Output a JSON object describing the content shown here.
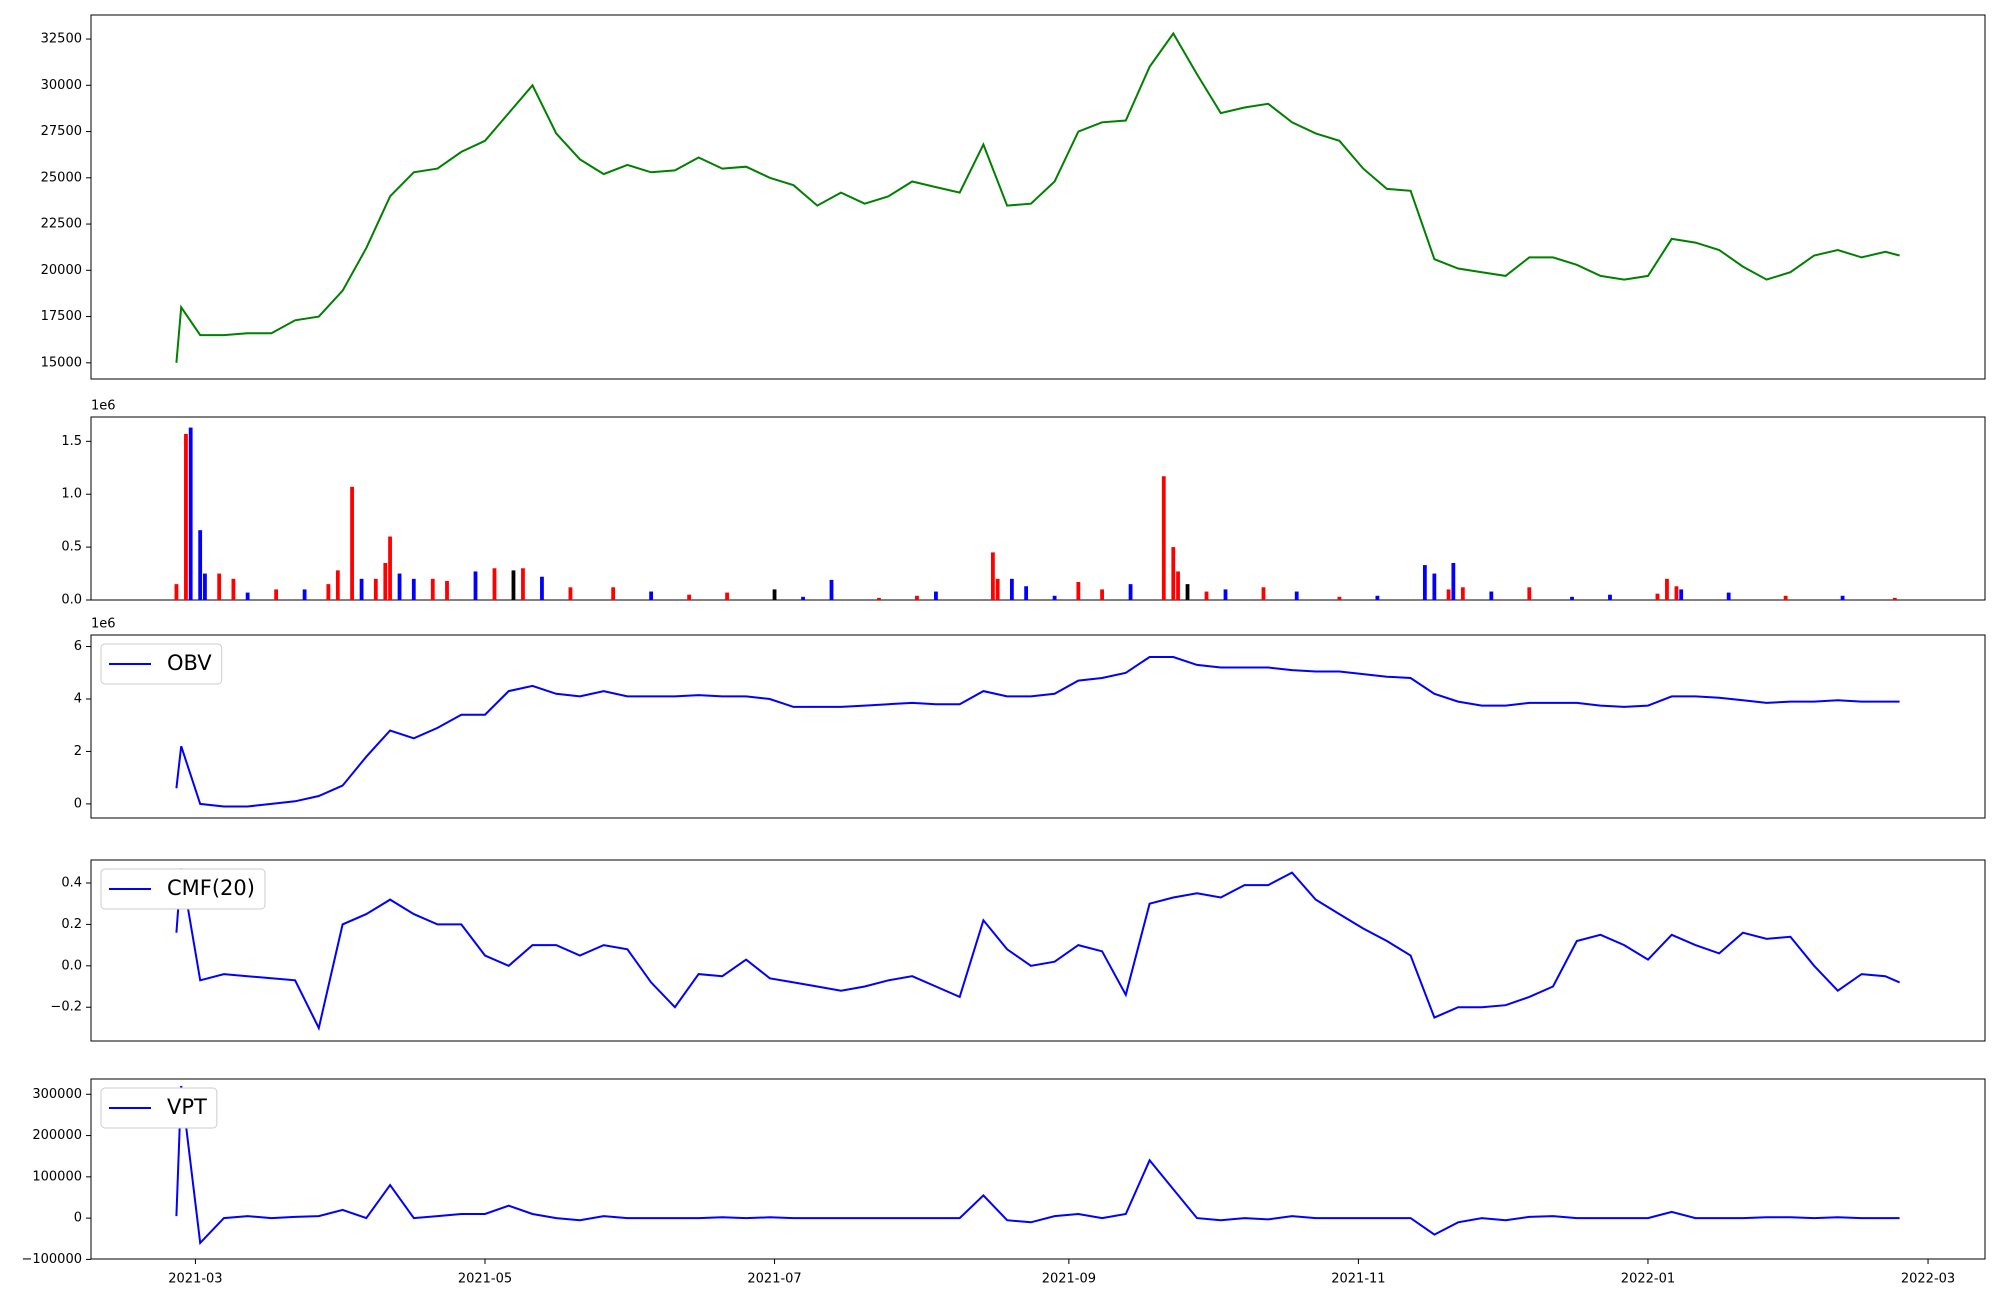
{
  "chart_data": [
    {
      "type": "line",
      "xlim": [
        18665,
        19064
      ],
      "ylim": [
        14125,
        33800
      ],
      "yticks": [
        15000,
        17500,
        20000,
        22500,
        25000,
        27500,
        30000,
        32500
      ],
      "x": [
        18683,
        18684,
        18688,
        18693,
        18698,
        18703,
        18708,
        18713,
        18718,
        18723,
        18728,
        18733,
        18738,
        18743,
        18748,
        18753,
        18758,
        18763,
        18768,
        18773,
        18778,
        18783,
        18788,
        18793,
        18798,
        18803,
        18808,
        18813,
        18818,
        18823,
        18828,
        18833,
        18838,
        18843,
        18848,
        18853,
        18858,
        18863,
        18868,
        18873,
        18878,
        18883,
        18888,
        18893,
        18898,
        18903,
        18908,
        18913,
        18918,
        18923,
        18928,
        18933,
        18938,
        18943,
        18948,
        18953,
        18958,
        18963,
        18968,
        18973,
        18978,
        18983,
        18988,
        18993,
        18998,
        19003,
        19008,
        19013,
        19018,
        19023,
        19028,
        19033,
        19038,
        19043,
        19046
      ],
      "series": [
        {
          "color": "#008000",
          "values": [
            15000,
            18000,
            16500,
            16500,
            16600,
            16600,
            17300,
            17500,
            18900,
            21200,
            24000,
            25300,
            25500,
            26400,
            27000,
            28500,
            30000,
            27400,
            26000,
            25200,
            25700,
            25300,
            25400,
            26100,
            25500,
            25600,
            25000,
            24600,
            23500,
            24200,
            23600,
            24000,
            24800,
            24500,
            24200,
            26800,
            23500,
            23600,
            24800,
            27500,
            28000,
            28100,
            31000,
            32800,
            30600,
            28500,
            28800,
            29000,
            28000,
            27400,
            27000,
            25500,
            24400,
            24300,
            20600,
            20100,
            19900,
            19700,
            20700,
            20700,
            20300,
            19700,
            19500,
            19700,
            21700,
            21500,
            21100,
            20200,
            19500,
            19900,
            20800,
            21100,
            20700,
            21000,
            20800
          ]
        }
      ]
    },
    {
      "type": "bar",
      "xlim": [
        18665,
        19064
      ],
      "ylim": [
        0,
        1730000
      ],
      "y_offset_label": "1e6",
      "yticks": [
        {
          "value": 0,
          "label": "0.0"
        },
        {
          "value": 500000,
          "label": "0.5"
        },
        {
          "value": 1000000,
          "label": "1.0"
        },
        {
          "value": 1500000,
          "label": "1.5"
        }
      ],
      "x": [
        18683,
        18685,
        18686,
        18688,
        18689,
        18692,
        18695,
        18698,
        18704,
        18710,
        18715,
        18717,
        18720,
        18722,
        18725,
        18727,
        18728,
        18730,
        18733,
        18737,
        18740,
        18746,
        18750,
        18754,
        18756,
        18760,
        18766,
        18775,
        18783,
        18791,
        18799,
        18809,
        18815,
        18821,
        18831,
        18839,
        18843,
        18855,
        18856,
        18859,
        18862,
        18868,
        18873,
        18878,
        18884,
        18891,
        18893,
        18894,
        18896,
        18900,
        18904,
        18912,
        18919,
        18928,
        18936,
        18946,
        18948,
        18951,
        18952,
        18954,
        18960,
        18968,
        18977,
        18985,
        18995,
        18997,
        18999,
        19000,
        19010,
        19022,
        19034,
        19045
      ],
      "series": [
        {
          "values": [
            150000,
            1570000,
            1630000,
            660000,
            250000,
            250000,
            200000,
            70000,
            100000,
            100000,
            150000,
            280000,
            1070000,
            200000,
            200000,
            350000,
            600000,
            250000,
            200000,
            200000,
            180000,
            270000,
            300000,
            280000,
            300000,
            220000,
            120000,
            120000,
            80000,
            50000,
            70000,
            100000,
            30000,
            190000,
            20000,
            40000,
            80000,
            450000,
            200000,
            200000,
            130000,
            40000,
            170000,
            100000,
            150000,
            1170000,
            500000,
            270000,
            150000,
            80000,
            100000,
            120000,
            80000,
            30000,
            40000,
            330000,
            250000,
            100000,
            350000,
            120000,
            80000,
            120000,
            30000,
            50000,
            60000,
            200000,
            130000,
            100000,
            70000,
            40000,
            40000,
            20000
          ],
          "colors": [
            "#ff0000",
            "#ff0000",
            "#0000ff",
            "#0000ff",
            "#0000ff",
            "#ff0000",
            "#ff0000",
            "#0000ff",
            "#ff0000",
            "#0000ff",
            "#ff0000",
            "#ff0000",
            "#ff0000",
            "#0000ff",
            "#ff0000",
            "#ff0000",
            "#ff0000",
            "#0000ff",
            "#0000ff",
            "#ff0000",
            "#ff0000",
            "#0000ff",
            "#ff0000",
            "#000000",
            "#ff0000",
            "#0000ff",
            "#ff0000",
            "#ff0000",
            "#0000ff",
            "#ff0000",
            "#ff0000",
            "#000000",
            "#0000ff",
            "#0000ff",
            "#ff0000",
            "#ff0000",
            "#0000ff",
            "#ff0000",
            "#ff0000",
            "#0000ff",
            "#0000ff",
            "#0000ff",
            "#ff0000",
            "#ff0000",
            "#0000ff",
            "#ff0000",
            "#ff0000",
            "#ff0000",
            "#000000",
            "#ff0000",
            "#0000ff",
            "#ff0000",
            "#0000ff",
            "#ff0000",
            "#0000ff",
            "#0000ff",
            "#0000ff",
            "#ff0000",
            "#0000ff",
            "#ff0000",
            "#0000ff",
            "#ff0000",
            "#0000ff",
            "#0000ff",
            "#ff0000",
            "#ff0000",
            "#ff0000",
            "#0000ff",
            "#0000ff",
            "#ff0000",
            "#0000ff",
            "#ff0000"
          ]
        }
      ]
    },
    {
      "type": "line",
      "xlim": [
        18665,
        19064
      ],
      "ylim": [
        -537000,
        6440000
      ],
      "y_offset_label": "1e6",
      "legend": "upper left",
      "yticks": [
        0,
        {
          "value": 2000000,
          "label": "2"
        },
        {
          "value": 4000000,
          "label": "4"
        },
        {
          "value": 6000000,
          "label": "6"
        }
      ],
      "x": [
        18683,
        18684,
        18688,
        18693,
        18698,
        18703,
        18708,
        18713,
        18718,
        18723,
        18728,
        18733,
        18738,
        18743,
        18748,
        18753,
        18758,
        18763,
        18768,
        18773,
        18778,
        18783,
        18788,
        18793,
        18798,
        18803,
        18808,
        18813,
        18818,
        18823,
        18828,
        18833,
        18838,
        18843,
        18848,
        18853,
        18858,
        18863,
        18868,
        18873,
        18878,
        18883,
        18888,
        18893,
        18898,
        18903,
        18908,
        18913,
        18918,
        18923,
        18928,
        18933,
        18938,
        18943,
        18948,
        18953,
        18958,
        18963,
        18968,
        18973,
        18978,
        18983,
        18988,
        18993,
        18998,
        19003,
        19008,
        19013,
        19018,
        19023,
        19028,
        19033,
        19038,
        19043,
        19046
      ],
      "series": [
        {
          "name": "OBV",
          "color": "#0000ff",
          "values": [
            600000,
            2200000,
            0,
            -100000,
            -100000,
            0,
            100000,
            300000,
            700000,
            1800000,
            2800000,
            2500000,
            2900000,
            3400000,
            3400000,
            4300000,
            4500000,
            4200000,
            4100000,
            4300000,
            4100000,
            4100000,
            4100000,
            4150000,
            4100000,
            4100000,
            4000000,
            3700000,
            3700000,
            3700000,
            3750000,
            3800000,
            3850000,
            3800000,
            3800000,
            4300000,
            4100000,
            4100000,
            4200000,
            4700000,
            4800000,
            5000000,
            5600000,
            5600000,
            5300000,
            5200000,
            5200000,
            5200000,
            5100000,
            5050000,
            5050000,
            4950000,
            4850000,
            4800000,
            4200000,
            3900000,
            3750000,
            3750000,
            3850000,
            3850000,
            3850000,
            3750000,
            3700000,
            3750000,
            4100000,
            4100000,
            4050000,
            3950000,
            3850000,
            3900000,
            3900000,
            3950000,
            3900000,
            3900000,
            3900000
          ]
        }
      ]
    },
    {
      "type": "line",
      "xlim": [
        18665,
        19064
      ],
      "ylim": [
        -0.363,
        0.511
      ],
      "legend": "upper left",
      "yticks": [
        {
          "value": -0.2,
          "label": "−0.2"
        },
        {
          "value": 0,
          "label": "0.0"
        },
        0.2,
        0.4
      ],
      "x": [
        18683,
        18684,
        18688,
        18693,
        18698,
        18703,
        18708,
        18713,
        18718,
        18723,
        18728,
        18733,
        18738,
        18743,
        18748,
        18753,
        18758,
        18763,
        18768,
        18773,
        18778,
        18783,
        18788,
        18793,
        18798,
        18803,
        18808,
        18813,
        18818,
        18823,
        18828,
        18833,
        18838,
        18843,
        18848,
        18853,
        18858,
        18863,
        18868,
        18873,
        18878,
        18883,
        18888,
        18893,
        18898,
        18903,
        18908,
        18913,
        18918,
        18923,
        18928,
        18933,
        18938,
        18943,
        18948,
        18953,
        18958,
        18963,
        18968,
        18973,
        18978,
        18983,
        18988,
        18993,
        18998,
        19003,
        19008,
        19013,
        19018,
        19023,
        19028,
        19033,
        19038,
        19043,
        19046
      ],
      "series": [
        {
          "name": "CMF(20)",
          "color": "#0000ff",
          "values": [
            0.16,
            0.47,
            -0.07,
            -0.04,
            -0.05,
            -0.06,
            -0.07,
            -0.3,
            0.2,
            0.25,
            0.32,
            0.25,
            0.2,
            0.2,
            0.05,
            0,
            0.1,
            0.1,
            0.05,
            0.1,
            0.08,
            -0.08,
            -0.2,
            -0.04,
            -0.05,
            0.03,
            -0.06,
            -0.08,
            -0.1,
            -0.12,
            -0.1,
            -0.07,
            -0.05,
            -0.1,
            -0.15,
            0.22,
            0.08,
            0,
            0.02,
            0.1,
            0.07,
            -0.14,
            0.3,
            0.33,
            0.35,
            0.33,
            0.39,
            0.39,
            0.45,
            0.32,
            0.25,
            0.18,
            0.12,
            0.05,
            -0.25,
            -0.2,
            -0.2,
            -0.19,
            -0.15,
            -0.1,
            0.12,
            0.15,
            0.1,
            0.03,
            0.15,
            0.1,
            0.06,
            0.16,
            0.13,
            0.14,
            0,
            -0.12,
            -0.04,
            -0.05,
            -0.08
          ]
        }
      ]
    },
    {
      "type": "line",
      "xlim": [
        18665,
        19064
      ],
      "ylim": [
        -99000,
        337000
      ],
      "legend": "upper left",
      "yticks": [
        {
          "value": -100000,
          "label": "−100000"
        },
        0,
        100000,
        200000,
        300000
      ],
      "xticks": [
        {
          "value": 18687,
          "label": "2021-03"
        },
        {
          "value": 18748,
          "label": "2021-05"
        },
        {
          "value": 18809,
          "label": "2021-07"
        },
        {
          "value": 18871,
          "label": "2021-09"
        },
        {
          "value": 18932,
          "label": "2021-11"
        },
        {
          "value": 18993,
          "label": "2022-01"
        },
        {
          "value": 19052,
          "label": "2022-03"
        }
      ],
      "x": [
        18683,
        18684,
        18688,
        18693,
        18698,
        18703,
        18708,
        18713,
        18718,
        18723,
        18728,
        18733,
        18738,
        18743,
        18748,
        18753,
        18758,
        18763,
        18768,
        18773,
        18778,
        18783,
        18788,
        18793,
        18798,
        18803,
        18808,
        18813,
        18818,
        18823,
        18828,
        18833,
        18838,
        18843,
        18848,
        18853,
        18858,
        18863,
        18868,
        18873,
        18878,
        18883,
        18888,
        18893,
        18898,
        18903,
        18908,
        18913,
        18918,
        18923,
        18928,
        18933,
        18938,
        18943,
        18948,
        18953,
        18958,
        18963,
        18968,
        18973,
        18978,
        18983,
        18988,
        18993,
        18998,
        19003,
        19008,
        19013,
        19018,
        19023,
        19028,
        19033,
        19038,
        19043,
        19046
      ],
      "series": [
        {
          "name": "VPT",
          "color": "#0000ff",
          "values": [
            5000,
            320000,
            -60000,
            0,
            5000,
            0,
            3000,
            5000,
            20000,
            0,
            80000,
            0,
            5000,
            10000,
            10000,
            30000,
            10000,
            0,
            -5000,
            5000,
            0,
            0,
            0,
            0,
            2000,
            0,
            2000,
            0,
            0,
            0,
            0,
            0,
            0,
            0,
            0,
            55000,
            -5000,
            -10000,
            5000,
            10000,
            0,
            10000,
            140000,
            70000,
            0,
            -5000,
            0,
            -3000,
            5000,
            0,
            0,
            0,
            0,
            0,
            -40000,
            -10000,
            0,
            -5000,
            3000,
            5000,
            0,
            0,
            0,
            0,
            15000,
            0,
            0,
            0,
            2000,
            2000,
            0,
            2000,
            0,
            0,
            0
          ]
        }
      ]
    }
  ]
}
